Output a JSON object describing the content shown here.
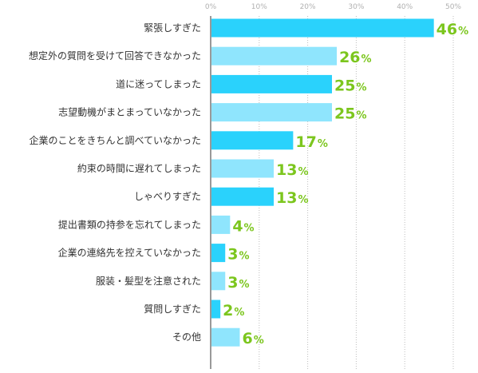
{
  "chart_data": {
    "type": "bar",
    "orientation": "horizontal",
    "categories": [
      "緊張しすぎた",
      "想定外の質問を受けて回答できなかった",
      "道に迷ってしまった",
      "志望動機がまとまっていなかった",
      "企業のことをきちんと調べていなかった",
      "約束の時間に遅れてしまった",
      "しゃべりすぎた",
      "提出書類の持参を忘れてしまった",
      "企業の連絡先を控えていなかった",
      "服装・髪型を注意された",
      "質問しすぎた",
      "その他"
    ],
    "values": [
      46,
      26,
      25,
      25,
      17,
      13,
      13,
      4,
      3,
      3,
      2,
      6
    ],
    "value_labels": [
      "46",
      "26",
      "25",
      "25",
      "17",
      "13",
      "13",
      "4",
      "3",
      "3",
      "2",
      "6"
    ],
    "value_suffix": "%",
    "xlim": [
      0,
      55
    ],
    "ticks": [
      0,
      10,
      20,
      30,
      40,
      50
    ],
    "tick_labels": [
      "0%",
      "10%",
      "20%",
      "30%",
      "40%",
      "50%"
    ],
    "grid": true,
    "bar_colors": [
      "#2ad2fc",
      "#8fe5fd"
    ],
    "value_label_color": "#7cc61e",
    "title": "",
    "xlabel": "",
    "ylabel": ""
  }
}
